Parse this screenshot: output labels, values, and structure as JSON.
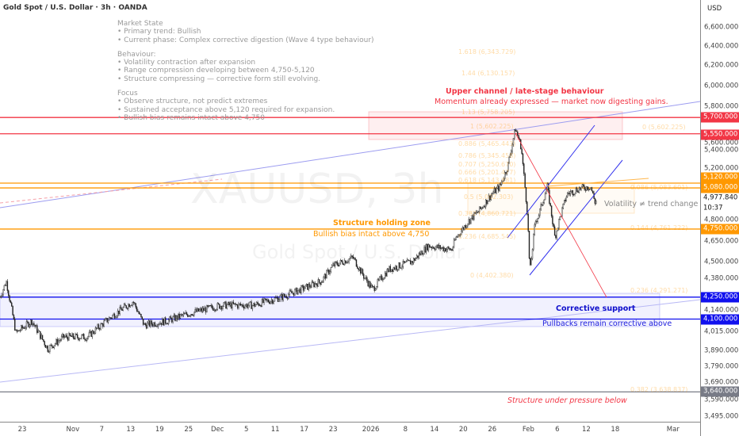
{
  "header": {
    "title": "Gold Spot / U.S. Dollar · 3h · OANDA",
    "currency": "USD"
  },
  "watermark": {
    "symbol": "XAUUSD, 3h",
    "name": "Gold Spot / U.S. Dollar"
  },
  "notes": {
    "h1": "Market State",
    "l1": "• Primary trend: Bullish",
    "l2": "• Current phase: Complex corrective digestion (Wave 4 type behaviour)",
    "h2": "Behaviour:",
    "l3": "• Volatility contraction after expansion",
    "l4": "• Range compression developing between 4,750-5,120",
    "l5": "• Structure compressing — corrective form still evolving.",
    "h3": "Focus",
    "l6": "• Observe structure, not predict extremes",
    "l7": "• Sustained acceptance above 5,120 required for expansion.",
    "l8": "• Bullish bias remains intact above 4,750"
  },
  "annotations": {
    "upper_title": "Upper channel / late-stage behaviour",
    "upper_sub": "Momentum already expressed — market now digesting gains.",
    "holding_title": "Structure holding zone",
    "holding_sub": "Bullish bias intact above 4,750",
    "volatility": "Volatility ≠ trend change",
    "support_title": "Corrective support",
    "support_sub": "Pullbacks remain corrective above",
    "pressure": "Structure under pressure below"
  },
  "fib_left": [
    "1.618 (6,343.729)",
    "1.44 (6,130.157)",
    "1.13 (5,758.205)",
    "1 (5,602.225)",
    "0.886 (5,465.443)",
    "0.786 (5,345.458)",
    "0.707 (5,250.670)",
    "0.666 (5,201.477)",
    "0.618 (5,143.881)",
    "0.5 (5,002.303)",
    "0.382 (4,860.721)",
    "0.236 (4,685.545)",
    "0 (4,402.380)"
  ],
  "fib_right": [
    "0 (5,602.225)",
    "0.086 (5,083.601)",
    "0.144 (4,761.222)",
    "0.236 (4,291.271)",
    "0.382 (3,638.837)"
  ],
  "price_labels": {
    "p5700": "5,700.000",
    "p5550": "5,550.000",
    "p5120": "5,120.000",
    "p5080": "5,080.000",
    "current": "4,977.840",
    "countdown": "10:37",
    "p4750": "4,750.000",
    "p4250": "4,250.000",
    "p4100": "4,100.000",
    "p3640": "3,640.000"
  },
  "colors": {
    "red": "#f23645",
    "orange": "#ff9800",
    "blue": "#1111ee",
    "gray": "#787b86",
    "candle": "#222222"
  },
  "chart_data": {
    "type": "candlestick",
    "title": "Gold Spot / U.S. Dollar · 3h · OANDA",
    "scale": "log",
    "ylim": [
      3495,
      6600
    ],
    "y_ticks": [
      "6,600.000",
      "6,400.000",
      "6,200.000",
      "6,000.000",
      "5,800.000",
      "5,600.000",
      "5,400.000",
      "5,200.000",
      "4,800.000",
      "4,650.000",
      "4,500.000",
      "4,380.000",
      "4,140.000",
      "4,015.000",
      "3,890.000",
      "3,790.000",
      "3,690.000",
      "3,590.000",
      "3,495.000"
    ],
    "x_ticks": [
      "23",
      "Nov",
      "7",
      "13",
      "19",
      "25",
      "Dec",
      "5",
      "11",
      "17",
      "23",
      "2026",
      "8",
      "14",
      "20",
      "26",
      "Feb",
      "6",
      "12",
      "18",
      "Mar"
    ],
    "x_tick_days": [
      0,
      10.5,
      16.5,
      22.5,
      28.5,
      34.5,
      40.5,
      46.5,
      52.5,
      58.5,
      64.5,
      72.3,
      79.5,
      85.5,
      91.5,
      97.5,
      105,
      111,
      117,
      123,
      135
    ],
    "price_path_days_since_oct23": [
      -4.6,
      -3.3,
      -1.3,
      2,
      5.3,
      8.6,
      13.5,
      18.4,
      23,
      25.3,
      29.9,
      34.9,
      41.4,
      48,
      53.8,
      57.9,
      62,
      64.5,
      68.6,
      71,
      72.7,
      76,
      80.9,
      84.2,
      89.1,
      90,
      92.4,
      94.9,
      97.4,
      99.1,
      100.7,
      102.3,
      103.5,
      104.8,
      105.3,
      106.4,
      107.2,
      108.9,
      110.5,
      111.3,
      113,
      115.5,
      117.9,
      118.8,
      119.1
    ],
    "price_path": [
      4250,
      4361,
      4008,
      4087,
      3906,
      3982,
      3982,
      4114,
      4221,
      4060,
      4087,
      4140,
      4194,
      4194,
      4250,
      4305,
      4361,
      4475,
      4534,
      4389,
      4305,
      4446,
      4504,
      4622,
      4592,
      4683,
      4805,
      4900,
      5029,
      5093,
      5262,
      5599,
      5434,
      4868,
      4417,
      4805,
      4868,
      5093,
      4683,
      4805,
      5029,
      5074,
      5093,
      4963,
      4978
    ],
    "levels": [
      5700,
      5550,
      5120,
      5080,
      4750,
      4250,
      4100,
      3640
    ],
    "current_price": 4977.84
  }
}
